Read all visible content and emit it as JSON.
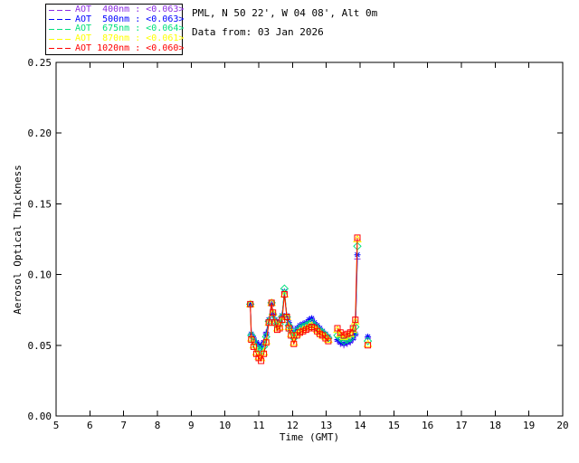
{
  "header": {
    "line1": "PML, N 50 22', W 04 08', Alt 0m",
    "line2": "Data from: 03 Jan 2026"
  },
  "chart_data": {
    "type": "line",
    "title": "PML, N 50 22', W 04 08', Alt 0m",
    "subtitle": "Data from: 03 Jan 2026",
    "xlabel": "Time (GMT)",
    "ylabel": "Aerosol Optical Thickness",
    "xlim": [
      5,
      20
    ],
    "ylim": [
      0.0,
      0.25
    ],
    "xticks": [
      5,
      6,
      7,
      8,
      9,
      10,
      11,
      12,
      13,
      14,
      15,
      16,
      17,
      18,
      19,
      20
    ],
    "xticklabels": [
      "5",
      "6",
      "7",
      "8",
      "9",
      "10",
      "11",
      "12",
      "13",
      "14",
      "15",
      "16",
      "17",
      "18",
      "19",
      "20"
    ],
    "yticks": [
      0.0,
      0.05,
      0.1,
      0.15,
      0.2,
      0.25
    ],
    "yticklabels": [
      "0.00",
      "0.05",
      "0.10",
      "0.15",
      "0.20",
      "0.25"
    ],
    "grid": false,
    "legend_position": "top-left-outside",
    "gap_threshold_hours": 0.2,
    "axis_color": "#000000",
    "x": [
      10.75,
      10.78,
      10.85,
      10.93,
      11.0,
      11.07,
      11.15,
      11.22,
      11.3,
      11.38,
      11.42,
      11.48,
      11.55,
      11.62,
      11.69,
      11.76,
      11.83,
      11.89,
      11.96,
      12.04,
      12.13,
      12.22,
      12.31,
      12.4,
      12.49,
      12.57,
      12.65,
      12.73,
      12.81,
      12.89,
      12.98,
      13.06,
      13.33,
      13.42,
      13.52,
      13.62,
      13.71,
      13.79,
      13.86,
      13.92,
      14.23
    ],
    "series": [
      {
        "name": "AOT 400nm",
        "wavelength_nm": 400,
        "mean_display": "<0.063>",
        "legend_label": "AOT  400nm : <0.063>",
        "color": "#8a2be2",
        "marker": "plus",
        "values": [
          0.078,
          0.058,
          0.055,
          0.052,
          0.051,
          0.05,
          0.053,
          0.059,
          0.068,
          0.078,
          0.071,
          0.068,
          0.066,
          0.067,
          0.071,
          0.087,
          0.071,
          0.066,
          0.062,
          0.058,
          0.062,
          0.064,
          0.065,
          0.066,
          0.068,
          0.069,
          0.066,
          0.064,
          0.062,
          0.06,
          0.058,
          0.056,
          0.053,
          0.051,
          0.05,
          0.051,
          0.052,
          0.054,
          0.057,
          0.111,
          0.055
        ]
      },
      {
        "name": "AOT 500nm",
        "wavelength_nm": 500,
        "mean_display": "<0.063>",
        "legend_label": "AOT  500nm : <0.063>",
        "color": "#0000ff",
        "marker": "asterisk",
        "values": [
          0.079,
          0.058,
          0.055,
          0.052,
          0.05,
          0.049,
          0.052,
          0.058,
          0.068,
          0.079,
          0.072,
          0.068,
          0.066,
          0.067,
          0.071,
          0.088,
          0.071,
          0.066,
          0.062,
          0.057,
          0.062,
          0.064,
          0.065,
          0.066,
          0.068,
          0.069,
          0.066,
          0.064,
          0.062,
          0.06,
          0.058,
          0.056,
          0.054,
          0.052,
          0.051,
          0.052,
          0.053,
          0.055,
          0.058,
          0.114,
          0.056
        ]
      },
      {
        "name": "AOT 675nm",
        "wavelength_nm": 675,
        "mean_display": "<0.064>",
        "legend_label": "AOT  675nm : <0.064>",
        "color": "#00e07c",
        "marker": "diamond",
        "values": [
          0.079,
          0.057,
          0.053,
          0.049,
          0.047,
          0.046,
          0.049,
          0.056,
          0.067,
          0.08,
          0.072,
          0.067,
          0.064,
          0.065,
          0.07,
          0.09,
          0.07,
          0.064,
          0.06,
          0.055,
          0.06,
          0.062,
          0.063,
          0.064,
          0.065,
          0.066,
          0.064,
          0.062,
          0.06,
          0.059,
          0.057,
          0.055,
          0.057,
          0.055,
          0.053,
          0.054,
          0.055,
          0.058,
          0.063,
          0.12,
          0.053
        ]
      },
      {
        "name": "AOT 870nm",
        "wavelength_nm": 870,
        "mean_display": "<0.061>",
        "legend_label": "AOT  870nm : <0.061>",
        "color": "#ffff00",
        "marker": "triangle",
        "values": [
          0.079,
          0.055,
          0.05,
          0.045,
          0.042,
          0.041,
          0.045,
          0.053,
          0.066,
          0.08,
          0.073,
          0.066,
          0.062,
          0.063,
          0.068,
          0.086,
          0.07,
          0.063,
          0.058,
          0.052,
          0.058,
          0.06,
          0.061,
          0.062,
          0.063,
          0.064,
          0.062,
          0.061,
          0.059,
          0.057,
          0.056,
          0.054,
          0.061,
          0.058,
          0.056,
          0.057,
          0.058,
          0.061,
          0.067,
          0.125,
          0.051
        ]
      },
      {
        "name": "AOT 1020nm",
        "wavelength_nm": 1020,
        "mean_display": "<0.060>",
        "legend_label": "AOT 1020nm : <0.060>",
        "color": "#ff0000",
        "marker": "square",
        "values": [
          0.079,
          0.054,
          0.049,
          0.044,
          0.041,
          0.039,
          0.044,
          0.052,
          0.066,
          0.08,
          0.073,
          0.066,
          0.061,
          0.062,
          0.068,
          0.086,
          0.07,
          0.062,
          0.057,
          0.051,
          0.057,
          0.059,
          0.06,
          0.061,
          0.062,
          0.063,
          0.062,
          0.06,
          0.058,
          0.057,
          0.055,
          0.053,
          0.062,
          0.059,
          0.057,
          0.058,
          0.059,
          0.062,
          0.068,
          0.126,
          0.05
        ]
      }
    ]
  }
}
